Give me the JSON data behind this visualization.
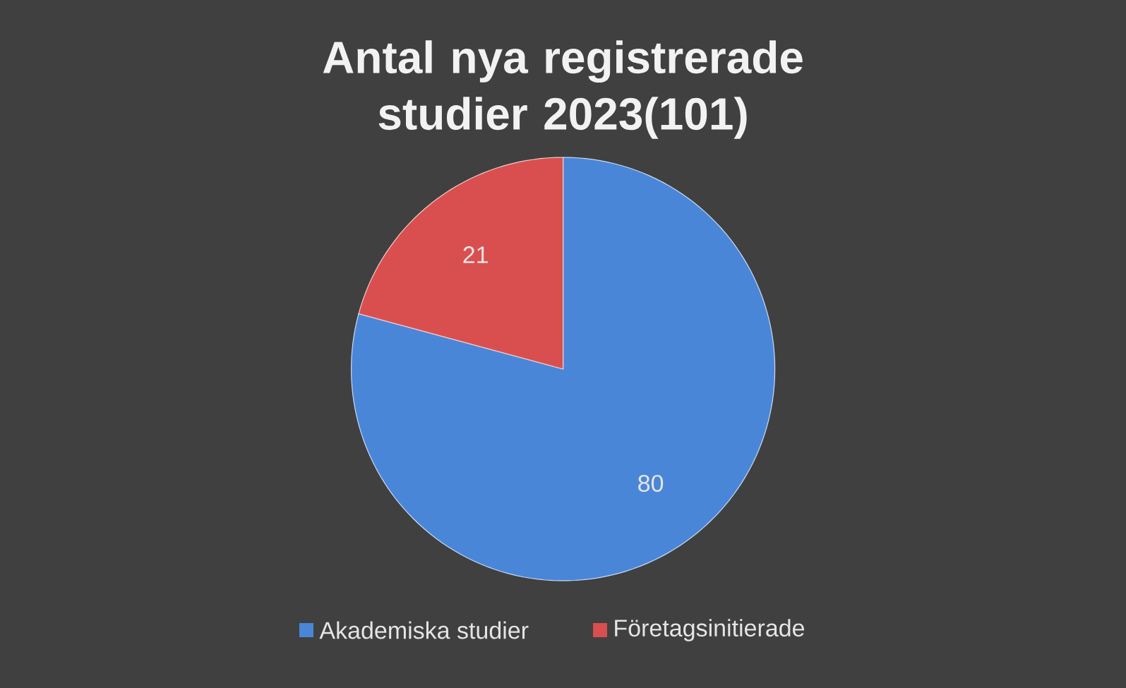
{
  "chart_data": {
    "type": "pie",
    "title": "Antal nya registrerade studier 2023(101)",
    "categories": [
      "Akademiska studier",
      "Företagsinitierade"
    ],
    "values": [
      80,
      21
    ],
    "colors": [
      "#4a86d8",
      "#d94f4f"
    ],
    "data_labels": true,
    "legend": "bottom"
  }
}
